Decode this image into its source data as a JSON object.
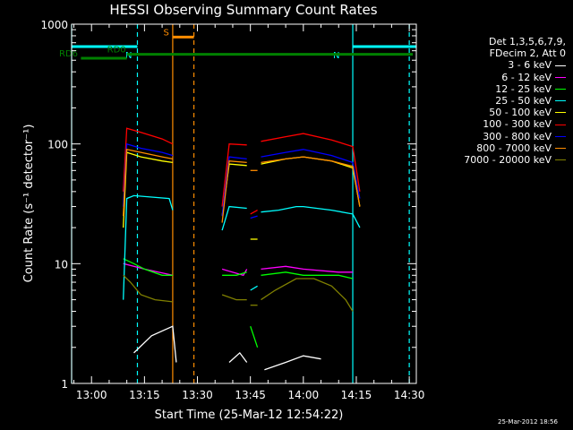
{
  "chart_data": {
    "type": "line",
    "title": "HESSI Observing Summary Count Rates",
    "xlabel": "Start Time (25-Mar-12 12:54:22)",
    "ylabel": "Count Rate (s⁻¹ detector⁻¹)",
    "y_scale": "log",
    "ylim": [
      1,
      1000
    ],
    "xlim": [
      "12:54:22",
      "14:32:00"
    ],
    "x_ticks": [
      "13:00",
      "13:15",
      "13:30",
      "13:45",
      "14:00",
      "14:15",
      "14:30"
    ],
    "y_ticks": [
      "1",
      "10",
      "100",
      "1000"
    ],
    "legend_header": [
      "Det 1,3,5,6,7,9,",
      "FDecim 2, Att 0"
    ],
    "legend_position": "right",
    "series": [
      {
        "name": "3 - 6 keV",
        "color": "#ffffff",
        "segments": [
          {
            "x": [
              "13:12",
              "13:17",
              "13:23",
              "13:24"
            ],
            "y": [
              1.8,
              2.5,
              3.0,
              1.5
            ]
          },
          {
            "x": [
              "13:39",
              "13:42",
              "13:44"
            ],
            "y": [
              1.5,
              1.8,
              1.5
            ]
          },
          {
            "x": [
              "13:49",
              "13:55",
              "14:00",
              "14:05"
            ],
            "y": [
              1.3,
              1.5,
              1.7,
              1.6
            ]
          }
        ]
      },
      {
        "name": "6 - 12 keV",
        "color": "#ff00ff",
        "segments": [
          {
            "x": [
              "13:09",
              "13:15",
              "13:23"
            ],
            "y": [
              10,
              9,
              8
            ]
          },
          {
            "x": [
              "13:37",
              "13:43",
              "13:44"
            ],
            "y": [
              9,
              8,
              9
            ]
          },
          {
            "x": [
              "13:48",
              "13:55",
              "14:00",
              "14:10",
              "14:14"
            ],
            "y": [
              9,
              9.5,
              9,
              8.5,
              8.5
            ]
          }
        ]
      },
      {
        "name": "12 - 25 keV",
        "color": "#00ff00",
        "segments": [
          {
            "x": [
              "13:09",
              "13:12",
              "13:15",
              "13:20",
              "13:23"
            ],
            "y": [
              11,
              10,
              9,
              8,
              8
            ]
          },
          {
            "x": [
              "13:37",
              "13:41",
              "13:44"
            ],
            "y": [
              8,
              8,
              8.5
            ]
          },
          {
            "x": [
              "13:45",
              "13:47"
            ],
            "y": [
              3,
              2
            ]
          },
          {
            "x": [
              "13:48",
              "13:55",
              "14:00",
              "14:10",
              "14:14"
            ],
            "y": [
              8,
              8.5,
              8,
              8,
              7.5
            ]
          }
        ]
      },
      {
        "name": "25 - 50 keV",
        "color": "#00ffff",
        "segments": [
          {
            "x": [
              "13:09",
              "13:10",
              "13:12",
              "13:17",
              "13:22",
              "13:23"
            ],
            "y": [
              5,
              35,
              37,
              36,
              35,
              28
            ]
          },
          {
            "x": [
              "13:37",
              "13:39",
              "13:44"
            ],
            "y": [
              19,
              30,
              29
            ]
          },
          {
            "x": [
              "13:45",
              "13:47"
            ],
            "y": [
              6,
              6.5
            ]
          },
          {
            "x": [
              "13:48",
              "13:53",
              "13:58",
              "14:00",
              "14:08",
              "14:14",
              "14:16"
            ],
            "y": [
              27,
              28,
              30,
              30,
              28,
              26,
              20
            ]
          }
        ]
      },
      {
        "name": "50 - 100 keV",
        "color": "#ffff00",
        "segments": [
          {
            "x": [
              "13:09",
              "13:10",
              "13:14",
              "13:20",
              "13:23"
            ],
            "y": [
              20,
              85,
              78,
              72,
              70
            ]
          },
          {
            "x": [
              "13:37",
              "13:39",
              "13:44"
            ],
            "y": [
              25,
              68,
              66
            ]
          },
          {
            "x": [
              "13:45",
              "13:47"
            ],
            "y": [
              16,
              16
            ]
          },
          {
            "x": [
              "13:48",
              "13:55",
              "14:00",
              "14:08",
              "14:14",
              "14:16"
            ],
            "y": [
              68,
              75,
              78,
              72,
              63,
              30
            ]
          }
        ]
      },
      {
        "name": "100 - 300 keV",
        "color": "#ff0000",
        "segments": [
          {
            "x": [
              "13:09",
              "13:10",
              "13:14",
              "13:20",
              "13:23"
            ],
            "y": [
              40,
              135,
              125,
              110,
              100
            ]
          },
          {
            "x": [
              "13:37",
              "13:39",
              "13:44"
            ],
            "y": [
              30,
              100,
              98
            ]
          },
          {
            "x": [
              "13:45",
              "13:47"
            ],
            "y": [
              26,
              28
            ]
          },
          {
            "x": [
              "13:48",
              "13:55",
              "14:00",
              "14:08",
              "14:14",
              "14:16"
            ],
            "y": [
              105,
              115,
              122,
              108,
              95,
              40
            ]
          }
        ]
      },
      {
        "name": "300 - 800 keV",
        "color": "#0000ff",
        "segments": [
          {
            "x": [
              "13:09",
              "13:10",
              "13:14",
              "13:20",
              "13:23"
            ],
            "y": [
              30,
              100,
              92,
              85,
              80
            ]
          },
          {
            "x": [
              "13:37",
              "13:39",
              "13:44"
            ],
            "y": [
              25,
              78,
              75
            ]
          },
          {
            "x": [
              "13:45",
              "13:47"
            ],
            "y": [
              24,
              25
            ]
          },
          {
            "x": [
              "13:48",
              "13:55",
              "14:00",
              "14:08",
              "14:14",
              "14:16"
            ],
            "y": [
              78,
              85,
              90,
              80,
              70,
              35
            ]
          }
        ]
      },
      {
        "name": "800 - 7000 keV",
        "color": "#ff8c00",
        "segments": [
          {
            "x": [
              "13:09",
              "13:10",
              "13:14",
              "13:20",
              "13:23"
            ],
            "y": [
              25,
              90,
              85,
              78,
              75
            ]
          },
          {
            "x": [
              "13:37",
              "13:39",
              "13:44"
            ],
            "y": [
              22,
              72,
              70
            ]
          },
          {
            "x": [
              "13:45",
              "13:47"
            ],
            "y": [
              60,
              60
            ]
          },
          {
            "x": [
              "13:48",
              "13:55",
              "14:00",
              "14:08",
              "14:14",
              "14:16"
            ],
            "y": [
              70,
              75,
              78,
              72,
              65,
              30
            ]
          }
        ]
      },
      {
        "name": "7000 - 20000 keV",
        "color": "#808000",
        "segments": [
          {
            "x": [
              "13:09",
              "13:11",
              "13:14",
              "13:18",
              "13:23"
            ],
            "y": [
              8,
              7,
              5.5,
              5,
              4.8
            ]
          },
          {
            "x": [
              "13:37",
              "13:41",
              "13:44"
            ],
            "y": [
              5.5,
              5,
              5
            ]
          },
          {
            "x": [
              "13:45",
              "13:47"
            ],
            "y": [
              4.5,
              4.5
            ]
          },
          {
            "x": [
              "13:48",
              "13:52",
              "13:58",
              "14:03",
              "14:08",
              "14:12",
              "14:14"
            ],
            "y": [
              5,
              6,
              7.5,
              7.5,
              6.5,
              5,
              4
            ]
          }
        ]
      }
    ],
    "annotations": [
      {
        "label": "S",
        "color": "#ff8c00",
        "x_start": "13:23",
        "x_end": "13:29",
        "y": 780
      },
      {
        "label": "N",
        "color": "#00ffff",
        "x_start": "12:54:22",
        "x_end": "13:13",
        "y": 650
      },
      {
        "label": "N",
        "color": "#00ffff",
        "x_start": "14:14",
        "x_end": "14:32",
        "y": 650
      },
      {
        "label": "RD0",
        "color": "#008000",
        "x_start": "13:10",
        "x_end": "14:31",
        "y": 560
      },
      {
        "label": "RD6",
        "color": "#008000",
        "x_start": "12:57",
        "x_end": "13:10",
        "y": 520
      }
    ],
    "vertical_lines": [
      {
        "x": "12:54:22",
        "color": "#00ffff",
        "style": "solid"
      },
      {
        "x": "13:13",
        "color": "#00ffff",
        "style": "dashed"
      },
      {
        "x": "13:23",
        "color": "#ff8c00",
        "style": "solid"
      },
      {
        "x": "13:29",
        "color": "#ff8c00",
        "style": "dashed"
      },
      {
        "x": "14:14",
        "color": "#00ffff",
        "style": "solid"
      },
      {
        "x": "14:30",
        "color": "#00ffff",
        "style": "dashed"
      }
    ]
  },
  "footer_stamp": "25-Mar-2012 18:56"
}
